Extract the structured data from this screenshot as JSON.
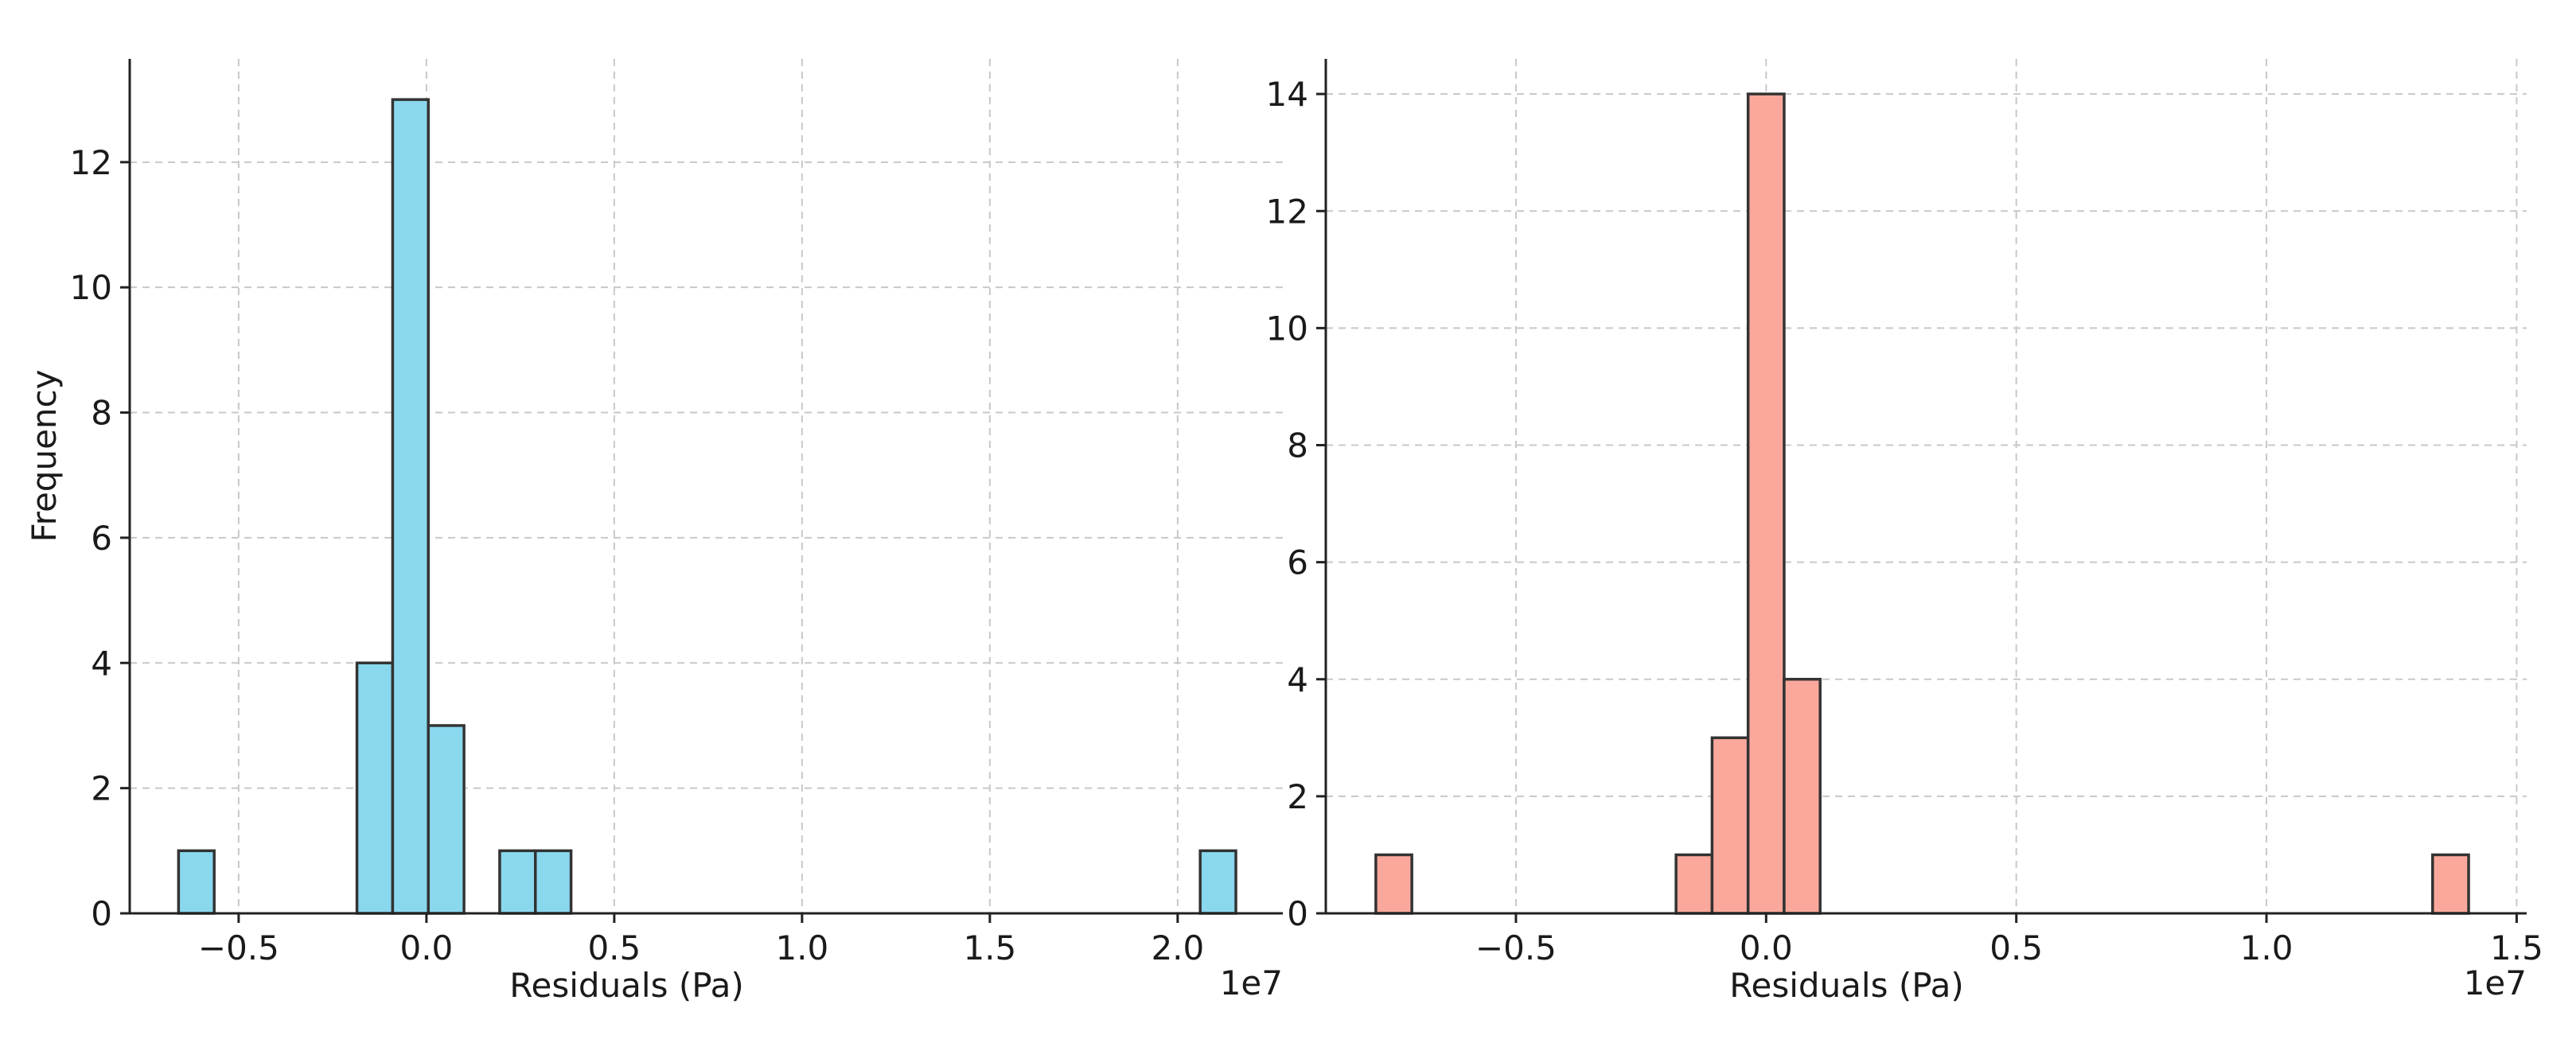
{
  "chart_data": [
    {
      "type": "bar",
      "subtype": "histogram",
      "title": "",
      "xlabel": "Residuals (Pa)",
      "ylabel": "Frequency",
      "x_offset_label": "1e7",
      "xlim": [
        -0.79,
        2.28
      ],
      "ylim": [
        0,
        13.65
      ],
      "xticks": [
        -0.5,
        0.0,
        0.5,
        1.0,
        1.5,
        2.0
      ],
      "xtick_labels": [
        "−0.5",
        "0.0",
        "0.5",
        "1.0",
        "1.5",
        "2.0"
      ],
      "yticks": [
        0,
        2,
        4,
        6,
        8,
        10,
        12
      ],
      "ytick_labels": [
        "0",
        "2",
        "4",
        "6",
        "8",
        "10",
        "12"
      ],
      "grid": true,
      "bar_color": "#89d8ee",
      "edge_color": "#333333",
      "bins": [
        {
          "x0": -0.66,
          "x1": -0.565,
          "count": 1
        },
        {
          "x0": -0.185,
          "x1": -0.09,
          "count": 4
        },
        {
          "x0": -0.09,
          "x1": 0.005,
          "count": 13
        },
        {
          "x0": 0.005,
          "x1": 0.1,
          "count": 3
        },
        {
          "x0": 0.195,
          "x1": 0.29,
          "count": 1
        },
        {
          "x0": 0.29,
          "x1": 0.385,
          "count": 1
        },
        {
          "x0": 2.06,
          "x1": 2.155,
          "count": 1
        }
      ]
    },
    {
      "type": "bar",
      "subtype": "histogram",
      "title": "",
      "xlabel": "Residuals (Pa)",
      "ylabel": "",
      "x_offset_label": "1e7",
      "xlim": [
        -0.88,
        1.52
      ],
      "ylim": [
        0,
        14.6
      ],
      "xticks": [
        -0.5,
        0.0,
        0.5,
        1.0,
        1.5
      ],
      "xtick_labels": [
        "−0.5",
        "0.0",
        "0.5",
        "1.0",
        "1.5"
      ],
      "yticks": [
        0,
        2,
        4,
        6,
        8,
        10,
        12,
        14
      ],
      "ytick_labels": [
        "0",
        "2",
        "4",
        "6",
        "8",
        "10",
        "12",
        "14"
      ],
      "grid": true,
      "bar_color": "#fba89c",
      "edge_color": "#333333",
      "bins": [
        {
          "x0": -0.78,
          "x1": -0.708,
          "count": 1
        },
        {
          "x0": -0.18,
          "x1": -0.108,
          "count": 1
        },
        {
          "x0": -0.108,
          "x1": -0.036,
          "count": 3
        },
        {
          "x0": -0.036,
          "x1": 0.036,
          "count": 14
        },
        {
          "x0": 0.036,
          "x1": 0.108,
          "count": 4
        },
        {
          "x0": 1.332,
          "x1": 1.404,
          "count": 1
        }
      ]
    }
  ]
}
